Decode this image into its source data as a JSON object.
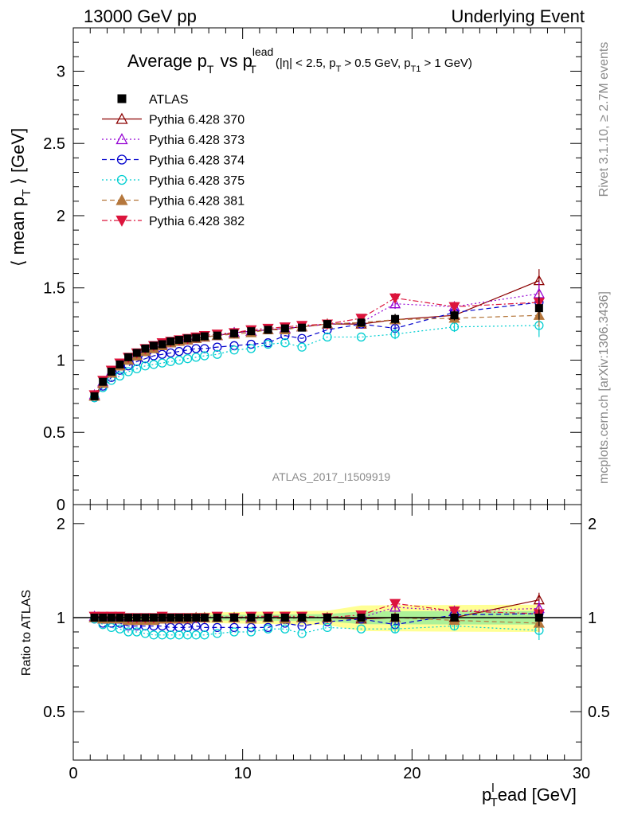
{
  "header": {
    "left": "13000 GeV pp",
    "right": "Underlying Event"
  },
  "side": {
    "rivet": "Rivet 3.1.10, ≥ 2.7M events",
    "mcplots": "mcplots.cern.ch [arXiv:1306.3436]"
  },
  "watermark": "ATLAS_2017_I1509919",
  "chart_data": {
    "type": "scatter",
    "title": "Average p_T vs p_T^lead (|η| < 2.5, p_T > 0.5 GeV, p_T1 > 1 GeV)",
    "title_parts": {
      "main1": "Average p",
      "sub1": "T",
      "main2": "vs p",
      "sup2": "lead",
      "sub2": "T",
      "cut1": "(|η| < 2.5, p",
      "cutsub1": "T",
      "cut2": "> 0.5 GeV, p",
      "cutsub2": "T1",
      "cut3": "> 1 GeV)"
    },
    "ylabel_parts": {
      "a": "⟨ mean p",
      "sub": "T",
      "b": "⟩ [GeV]"
    },
    "xlabel_parts": {
      "a": "p",
      "sup": "l",
      "sub": "T",
      "b": "ead [GeV]"
    },
    "ratio_ylabel": "Ratio to ATLAS",
    "xlim": [
      0,
      30
    ],
    "ylim": [
      0,
      3.3
    ],
    "ratio_ylim": [
      0.35,
      2.3
    ],
    "grid": false,
    "legend": "top-left",
    "x_ticks": [
      "0",
      "10",
      "20",
      "30"
    ],
    "y_ticks": [
      "0",
      "0.5",
      "1",
      "1.5",
      "2",
      "2.5",
      "3"
    ],
    "ratio_ticks": [
      "0.5",
      "1",
      "2"
    ],
    "x": [
      1.25,
      1.75,
      2.25,
      2.75,
      3.25,
      3.75,
      4.25,
      4.75,
      5.25,
      5.75,
      6.25,
      6.75,
      7.25,
      7.75,
      8.5,
      9.5,
      10.5,
      11.5,
      12.5,
      13.5,
      15.0,
      17.0,
      19.0,
      22.5,
      27.5
    ],
    "series": [
      {
        "name": "ATLAS",
        "color": "#000000",
        "marker": "square-filled",
        "line": "none",
        "values": [
          0.75,
          0.85,
          0.92,
          0.97,
          1.02,
          1.05,
          1.08,
          1.1,
          1.11,
          1.13,
          1.14,
          1.15,
          1.155,
          1.165,
          1.17,
          1.185,
          1.2,
          1.21,
          1.22,
          1.225,
          1.25,
          1.26,
          1.285,
          1.31,
          1.36
        ],
        "ratio": [
          1,
          1,
          1,
          1,
          1,
          1,
          1,
          1,
          1,
          1,
          1,
          1,
          1,
          1,
          1,
          1,
          1,
          1,
          1,
          1,
          1,
          1,
          1,
          1,
          1
        ]
      },
      {
        "name": "Pythia 6.428 370",
        "color": "#8b0000",
        "marker": "triangle-up-open",
        "line": "solid",
        "values": [
          0.75,
          0.84,
          0.91,
          0.96,
          1.0,
          1.03,
          1.06,
          1.08,
          1.1,
          1.12,
          1.13,
          1.14,
          1.15,
          1.16,
          1.17,
          1.19,
          1.2,
          1.21,
          1.22,
          1.23,
          1.25,
          1.25,
          1.28,
          1.31,
          1.55
        ],
        "ratio": [
          1.0,
          0.99,
          0.99,
          0.99,
          0.98,
          0.98,
          0.98,
          0.98,
          0.99,
          0.99,
          0.99,
          0.99,
          1.0,
          1.0,
          1.0,
          1.0,
          1.0,
          1.0,
          1.0,
          1.0,
          1.0,
          0.99,
          1.0,
          1.0,
          1.14
        ]
      },
      {
        "name": "Pythia 6.428 373",
        "color": "#9400d3",
        "marker": "triangle-up-open",
        "line": "dotted",
        "values": [
          0.76,
          0.85,
          0.92,
          0.97,
          1.01,
          1.04,
          1.07,
          1.09,
          1.11,
          1.12,
          1.13,
          1.14,
          1.15,
          1.16,
          1.17,
          1.19,
          1.2,
          1.21,
          1.22,
          1.23,
          1.25,
          1.26,
          1.39,
          1.37,
          1.46
        ],
        "ratio": [
          1.01,
          1.0,
          1.0,
          1.0,
          0.99,
          0.99,
          0.99,
          0.99,
          1.0,
          0.99,
          0.99,
          0.99,
          1.0,
          1.0,
          1.0,
          1.0,
          1.0,
          1.0,
          1.0,
          1.0,
          1.0,
          1.0,
          1.08,
          1.05,
          1.07
        ]
      },
      {
        "name": "Pythia 6.428 374",
        "color": "#0000cd",
        "marker": "circle-open",
        "line": "dashed",
        "values": [
          0.74,
          0.82,
          0.88,
          0.93,
          0.96,
          0.99,
          1.01,
          1.03,
          1.04,
          1.05,
          1.06,
          1.07,
          1.08,
          1.08,
          1.09,
          1.1,
          1.11,
          1.12,
          1.17,
          1.15,
          1.21,
          1.25,
          1.22,
          1.33,
          1.4
        ],
        "ratio": [
          0.99,
          0.96,
          0.96,
          0.96,
          0.94,
          0.94,
          0.94,
          0.94,
          0.94,
          0.93,
          0.93,
          0.93,
          0.94,
          0.93,
          0.93,
          0.93,
          0.93,
          0.93,
          0.96,
          0.94,
          0.97,
          0.99,
          0.95,
          1.02,
          1.03
        ]
      },
      {
        "name": "Pythia 6.428 375",
        "color": "#00ced1",
        "marker": "circle-open",
        "line": "dotted",
        "values": [
          0.74,
          0.81,
          0.86,
          0.89,
          0.92,
          0.94,
          0.96,
          0.97,
          0.98,
          0.99,
          1.0,
          1.01,
          1.02,
          1.03,
          1.04,
          1.07,
          1.08,
          1.11,
          1.12,
          1.09,
          1.16,
          1.16,
          1.18,
          1.23,
          1.24
        ],
        "ratio": [
          0.99,
          0.95,
          0.93,
          0.92,
          0.9,
          0.9,
          0.89,
          0.88,
          0.88,
          0.88,
          0.88,
          0.88,
          0.88,
          0.88,
          0.89,
          0.9,
          0.9,
          0.92,
          0.92,
          0.89,
          0.93,
          0.92,
          0.92,
          0.94,
          0.91
        ]
      },
      {
        "name": "Pythia 6.428 381",
        "color": "#b5773c",
        "marker": "triangle-up-filled",
        "line": "dashed",
        "values": [
          0.75,
          0.84,
          0.91,
          0.96,
          1.0,
          1.03,
          1.06,
          1.08,
          1.1,
          1.12,
          1.13,
          1.14,
          1.15,
          1.16,
          1.17,
          1.18,
          1.19,
          1.21,
          1.21,
          1.23,
          1.25,
          1.26,
          1.28,
          1.29,
          1.31
        ],
        "ratio": [
          1.0,
          0.99,
          0.99,
          0.99,
          0.98,
          0.98,
          0.98,
          0.98,
          0.99,
          0.99,
          0.99,
          0.99,
          1.0,
          1.0,
          1.0,
          1.0,
          0.99,
          1.0,
          0.99,
          1.0,
          1.0,
          1.0,
          1.0,
          0.98,
          0.96
        ]
      },
      {
        "name": "Pythia 6.428 382",
        "color": "#dc143c",
        "marker": "triangle-down-filled",
        "line": "dashdot",
        "values": [
          0.76,
          0.86,
          0.93,
          0.98,
          1.02,
          1.05,
          1.08,
          1.1,
          1.12,
          1.13,
          1.14,
          1.15,
          1.16,
          1.17,
          1.18,
          1.19,
          1.21,
          1.22,
          1.23,
          1.24,
          1.25,
          1.29,
          1.43,
          1.37,
          1.4
        ],
        "ratio": [
          1.01,
          1.01,
          1.01,
          1.01,
          1.0,
          1.0,
          1.0,
          1.0,
          1.01,
          1.0,
          1.0,
          1.0,
          1.0,
          1.0,
          1.01,
          1.0,
          1.01,
          1.01,
          1.01,
          1.01,
          1.0,
          1.02,
          1.11,
          1.05,
          1.03
        ]
      }
    ]
  }
}
